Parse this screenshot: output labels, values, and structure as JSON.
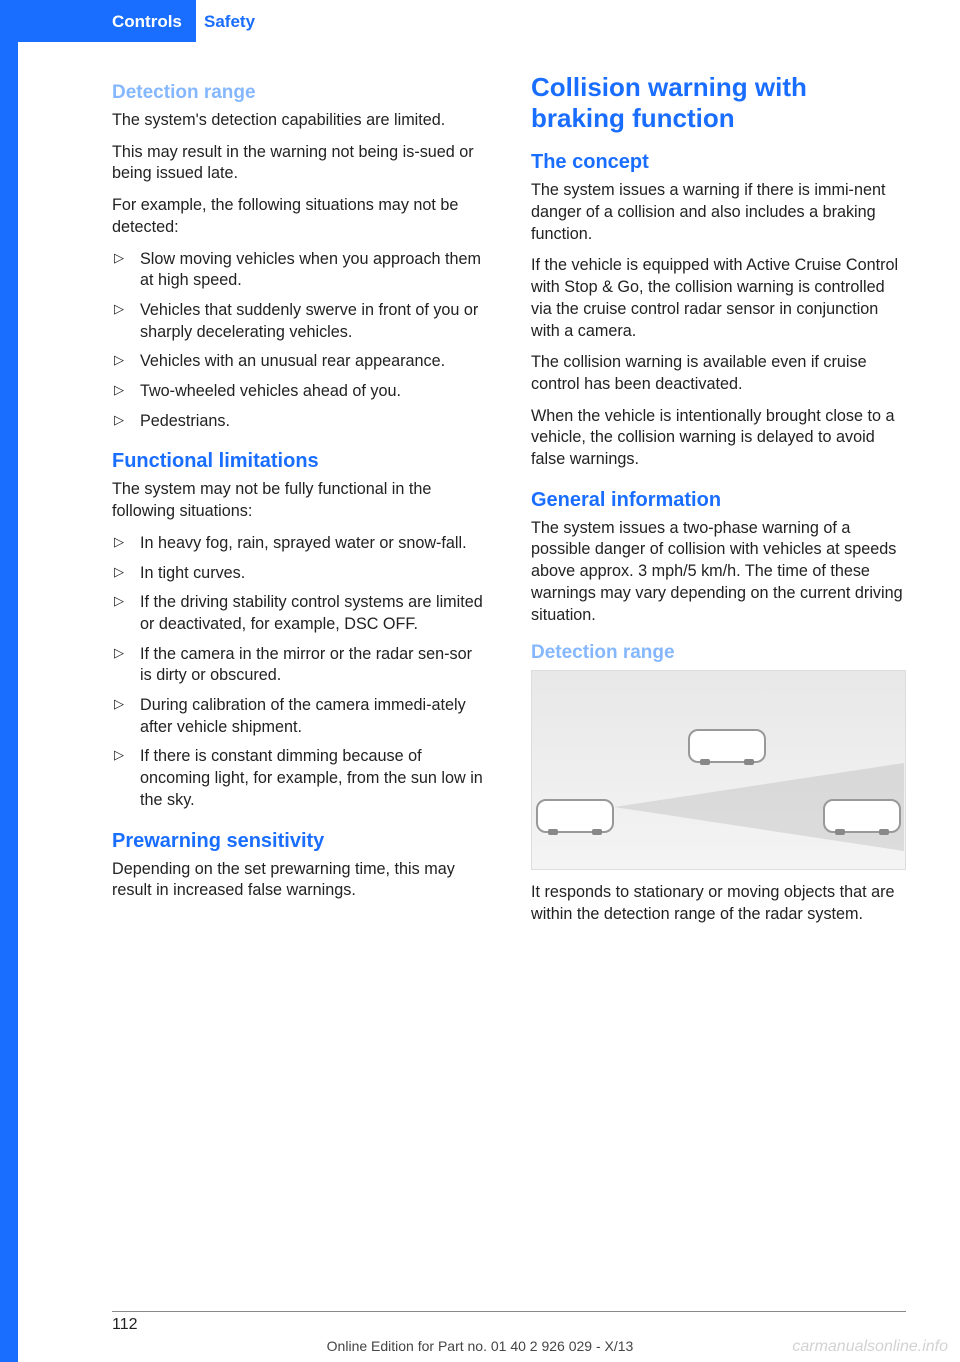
{
  "header": {
    "section": "Controls",
    "subsection": "Safety"
  },
  "left": {
    "h_detection": "Detection range",
    "p_det_1": "The system's detection capabilities are limited.",
    "p_det_2": "This may result in the warning not being is‐sued or being issued late.",
    "p_det_3": "For example, the following situations may not be detected:",
    "det_bullets": [
      "Slow moving vehicles when you approach them at high speed.",
      "Vehicles that suddenly swerve in front of you or sharply decelerating vehicles.",
      "Vehicles with an unusual rear appearance.",
      "Two-wheeled vehicles ahead of you.",
      "Pedestrians."
    ],
    "h_func": "Functional limitations",
    "p_func_1": "The system may not be fully functional in the following situations:",
    "func_bullets": [
      "In heavy fog, rain, sprayed water or snow‐fall.",
      "In tight curves.",
      "If the driving stability control systems are limited or deactivated, for example, DSC OFF.",
      "If the camera in the mirror or the radar sen‐sor is dirty or obscured.",
      "During calibration of the camera immedi‐ately after vehicle shipment.",
      "If there is constant dimming because of oncoming light, for example, from the sun low in the sky."
    ],
    "h_prewarn": "Prewarning sensitivity",
    "p_prewarn": "Depending on the set prewarning time, this may result in increased false warnings."
  },
  "right": {
    "h_main": "Collision warning with braking function",
    "h_concept": "The concept",
    "p_c1": "The system issues a warning if there is immi‐nent danger of a collision and also includes a braking function.",
    "p_c2": "If the vehicle is equipped with Active Cruise Control with Stop & Go, the collision warning is controlled via the cruise control radar sensor in conjunction with a camera.",
    "p_c3": "The collision warning is available even if cruise control has been deactivated.",
    "p_c4": "When the vehicle is intentionally brought close to a vehicle, the collision warning is delayed to avoid false warnings.",
    "h_general": "General information",
    "p_g1": "The system issues a two-phase warning of a possible danger of collision with vehicles at speeds above approx. 3 mph/5 km/h. The time of these warnings may vary depending on the current driving situation.",
    "h_detr": "Detection range",
    "p_d1": "It responds to stationary or moving objects that are within the detection range of the radar system."
  },
  "footer": {
    "page": "112",
    "line": "Online Edition for Part no. 01 40 2 926 029 - X/13",
    "watermark": "carmanualsonline.info"
  },
  "colors": {
    "brand_blue": "#1a6eff",
    "light_blue": "#85b7ff",
    "text": "#222222",
    "bg": "#ffffff"
  }
}
